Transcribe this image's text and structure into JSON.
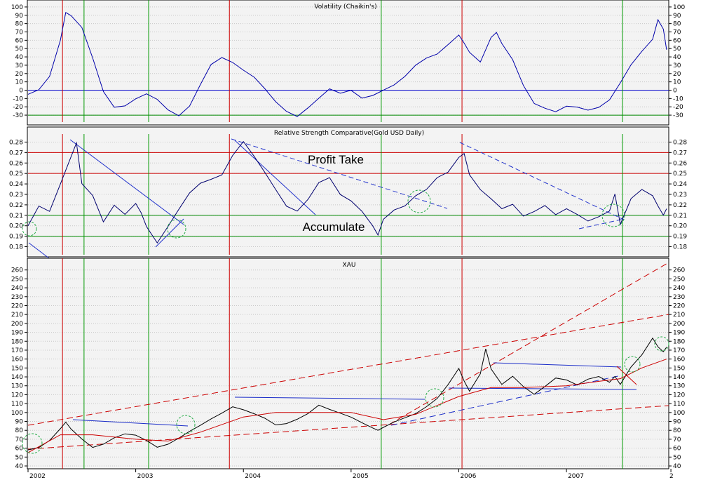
{
  "chart_data": [
    {
      "type": "line",
      "title": "Volatility (Chaikin's)",
      "ylim": [
        -35,
        105
      ],
      "yticks": [
        -30,
        -20,
        -10,
        0,
        10,
        20,
        30,
        40,
        50,
        60,
        70,
        80,
        90,
        100
      ],
      "grid": true,
      "reference_lines": [
        {
          "y": 0,
          "color": "#0000cc"
        },
        {
          "y": -30,
          "color": "#008800"
        }
      ],
      "series": [
        {
          "color": "#0000aa",
          "x": [
            2002.0,
            2002.1,
            2002.2,
            2002.3,
            2002.35,
            2002.4,
            2002.5,
            2002.6,
            2002.7,
            2002.8,
            2002.9,
            2003.0,
            2003.1,
            2003.2,
            2003.3,
            2003.4,
            2003.5,
            2003.6,
            2003.7,
            2003.8,
            2003.9,
            2004.0,
            2004.1,
            2004.2,
            2004.3,
            2004.4,
            2004.5,
            2004.6,
            2004.7,
            2004.8,
            2004.9,
            2005.0,
            2005.1,
            2005.2,
            2005.3,
            2005.4,
            2005.5,
            2005.6,
            2005.7,
            2005.8,
            2005.9,
            2006.0,
            2006.05,
            2006.1,
            2006.2,
            2006.3,
            2006.35,
            2006.4,
            2006.5,
            2006.6,
            2006.7,
            2006.8,
            2006.9,
            2007.0,
            2007.1,
            2007.2,
            2007.3,
            2007.4,
            2007.5,
            2007.6,
            2007.7,
            2007.8,
            2007.85,
            2007.9,
            2007.93
          ],
          "values": [
            -5,
            2,
            18,
            60,
            92,
            88,
            75,
            40,
            0,
            -20,
            -20,
            -12,
            -5,
            -10,
            -22,
            -30,
            -20,
            5,
            30,
            40,
            35,
            25,
            15,
            0,
            -15,
            -25,
            -30,
            -20,
            -10,
            0,
            -5,
            0,
            -8,
            -5,
            0,
            5,
            15,
            30,
            40,
            45,
            55,
            65,
            55,
            45,
            35,
            65,
            70,
            55,
            35,
            5,
            -15,
            -20,
            -25,
            -20,
            -22,
            -25,
            -20,
            -10,
            10,
            30,
            45,
            60,
            85,
            75,
            50
          ]
        }
      ]
    },
    {
      "type": "line",
      "title": "Relative Strength Comparative(Gold USD Daily)",
      "ylim": [
        0.175,
        0.285
      ],
      "yticks": [
        0.18,
        0.19,
        0.2,
        0.21,
        0.22,
        0.23,
        0.24,
        0.25,
        0.26,
        0.27,
        0.28
      ],
      "grid": true,
      "reference_lines": [
        {
          "y": 0.27,
          "color": "#cc0000"
        },
        {
          "y": 0.25,
          "color": "#cc0000"
        },
        {
          "y": 0.21,
          "color": "#008800"
        },
        {
          "y": 0.19,
          "color": "#008800"
        }
      ],
      "annotations": [
        "Profit Take",
        "Accumulate"
      ],
      "series": [
        {
          "color": "#00006e",
          "x": [
            2002.0,
            2002.1,
            2002.2,
            2002.3,
            2002.4,
            2002.45,
            2002.5,
            2002.6,
            2002.7,
            2002.8,
            2002.9,
            2003.0,
            2003.05,
            2003.1,
            2003.2,
            2003.3,
            2003.4,
            2003.5,
            2003.6,
            2003.7,
            2003.8,
            2003.9,
            2004.0,
            2004.1,
            2004.2,
            2004.3,
            2004.4,
            2004.5,
            2004.6,
            2004.7,
            2004.8,
            2004.9,
            2005.0,
            2005.1,
            2005.2,
            2005.25,
            2005.3,
            2005.4,
            2005.5,
            2005.6,
            2005.7,
            2005.8,
            2005.9,
            2006.0,
            2006.05,
            2006.1,
            2006.2,
            2006.3,
            2006.4,
            2006.5,
            2006.6,
            2006.7,
            2006.8,
            2006.9,
            2007.0,
            2007.1,
            2007.2,
            2007.3,
            2007.4,
            2007.45,
            2007.5,
            2007.6,
            2007.7,
            2007.8,
            2007.85,
            2007.9,
            2007.93
          ],
          "values": [
            0.2,
            0.22,
            0.215,
            0.24,
            0.265,
            0.278,
            0.24,
            0.23,
            0.205,
            0.22,
            0.21,
            0.22,
            0.212,
            0.2,
            0.185,
            0.2,
            0.215,
            0.23,
            0.24,
            0.245,
            0.25,
            0.268,
            0.28,
            0.265,
            0.25,
            0.235,
            0.22,
            0.215,
            0.225,
            0.24,
            0.245,
            0.23,
            0.225,
            0.215,
            0.2,
            0.19,
            0.205,
            0.215,
            0.22,
            0.23,
            0.235,
            0.245,
            0.25,
            0.265,
            0.27,
            0.25,
            0.235,
            0.225,
            0.215,
            0.22,
            0.21,
            0.215,
            0.22,
            0.21,
            0.215,
            0.21,
            0.205,
            0.21,
            0.215,
            0.23,
            0.2,
            0.225,
            0.235,
            0.23,
            0.22,
            0.21,
            0.215
          ]
        }
      ]
    },
    {
      "type": "line",
      "title": "XAU",
      "ylim": [
        40,
        270
      ],
      "yticks": [
        40,
        50,
        60,
        70,
        80,
        90,
        100,
        110,
        120,
        130,
        140,
        150,
        160,
        170,
        180,
        190,
        200,
        210,
        220,
        230,
        240,
        250,
        260
      ],
      "grid": true,
      "x_tick_labels": [
        "2002",
        "2003",
        "2004",
        "2005",
        "2006",
        "2007",
        "2"
      ],
      "series": [
        {
          "name": "",
          "color": "#000000",
          "x": [
            2002.0,
            2002.1,
            2002.2,
            2002.3,
            2002.35,
            2002.4,
            2002.5,
            2002.6,
            2002.7,
            2002.8,
            2002.9,
            2003.0,
            2003.1,
            2003.2,
            2003.3,
            2003.4,
            2003.5,
            2003.6,
            2003.7,
            2003.8,
            2003.9,
            2004.0,
            2004.1,
            2004.2,
            2004.3,
            2004.4,
            2004.5,
            2004.6,
            2004.7,
            2004.8,
            2004.9,
            2005.0,
            2005.1,
            2005.2,
            2005.25,
            2005.3,
            2005.4,
            2005.5,
            2005.6,
            2005.7,
            2005.8,
            2005.9,
            2006.0,
            2006.05,
            2006.1,
            2006.2,
            2006.25,
            2006.3,
            2006.4,
            2006.5,
            2006.6,
            2006.7,
            2006.8,
            2006.9,
            2007.0,
            2007.1,
            2007.2,
            2007.3,
            2007.4,
            2007.45,
            2007.5,
            2007.6,
            2007.7,
            2007.8,
            2007.85,
            2007.9,
            2007.93
          ],
          "values": [
            58,
            62,
            70,
            82,
            88,
            80,
            70,
            62,
            66,
            72,
            75,
            73,
            68,
            62,
            66,
            72,
            78,
            84,
            92,
            100,
            108,
            104,
            98,
            92,
            85,
            88,
            94,
            100,
            108,
            102,
            98,
            95,
            90,
            84,
            80,
            82,
            88,
            94,
            100,
            108,
            116,
            130,
            148,
            135,
            125,
            145,
            172,
            148,
            130,
            140,
            130,
            122,
            130,
            138,
            135,
            130,
            138,
            142,
            135,
            140,
            130,
            150,
            165,
            185,
            175,
            168,
            172
          ]
        },
        {
          "name": "",
          "color": "#cc0000",
          "x": [
            2002.0,
            2002.3,
            2002.6,
            2003.0,
            2003.3,
            2003.6,
            2004.0,
            2004.3,
            2004.6,
            2005.0,
            2005.3,
            2005.6,
            2006.0,
            2006.3,
            2006.6,
            2007.0,
            2007.3,
            2007.5,
            2007.7,
            2007.93
          ],
          "values": [
            55,
            75,
            75,
            70,
            68,
            78,
            95,
            100,
            100,
            100,
            92,
            98,
            118,
            128,
            128,
            130,
            135,
            138,
            150,
            160
          ]
        }
      ]
    }
  ]
}
